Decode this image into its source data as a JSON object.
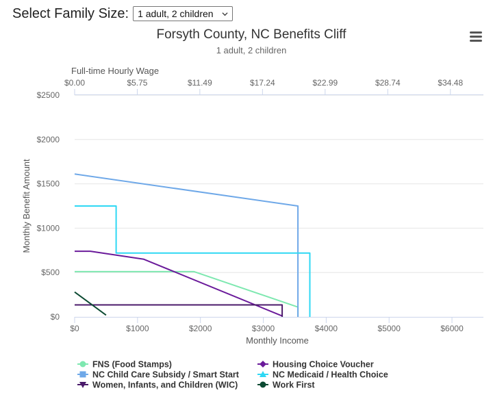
{
  "selector": {
    "label": "Select Family Size:",
    "selected": "1 adult, 2 children"
  },
  "colors": {
    "fns": "#7ee8b0",
    "housing": "#6a1a9a",
    "childcare": "#6ea8e8",
    "medicaid": "#2ed8f4",
    "wic": "#4a1a6a",
    "workfirst": "#0c4a32",
    "axis": "#ccd6eb",
    "text": "#666666"
  },
  "chart_data": {
    "type": "line",
    "title": "Forsyth County, NC Benefits Cliff",
    "subtitle": "1 adult, 2 children",
    "xlabel": "Monthly Income",
    "ylabel": "Monthly Benefit Amount",
    "top_axis_label": "Full-time Hourly Wage",
    "xlim": [
      0,
      6500
    ],
    "ylim": [
      0,
      2500
    ],
    "x_ticks": [
      0,
      1000,
      2000,
      3000,
      4000,
      5000,
      6000
    ],
    "x_tick_labels": [
      "$0",
      "$1000",
      "$2000",
      "$3000",
      "$4000",
      "$5000",
      "$6000"
    ],
    "y_ticks": [
      0,
      500,
      1000,
      1500,
      2000,
      2500
    ],
    "y_tick_labels": [
      "$0",
      "$500",
      "$1000",
      "$1500",
      "$2000",
      "$2500"
    ],
    "top_ticks": [
      0,
      996,
      1991,
      2987,
      3983,
      4979,
      5975
    ],
    "top_tick_labels": [
      "$0.00",
      "$5.75",
      "$11.49",
      "$17.24",
      "$22.99",
      "$28.74",
      "$34.48"
    ],
    "legend_position": "bottom",
    "series": [
      {
        "name": "FNS (Food Stamps)",
        "key": "fns",
        "marker": "circle",
        "points": [
          [
            0,
            510
          ],
          [
            1900,
            510
          ],
          [
            3550,
            110
          ],
          [
            3550,
            0
          ]
        ]
      },
      {
        "name": "Housing Choice Voucher",
        "key": "housing",
        "marker": "diamond",
        "points": [
          [
            0,
            740
          ],
          [
            250,
            740
          ],
          [
            1100,
            650
          ],
          [
            3300,
            10
          ]
        ]
      },
      {
        "name": "NC Child Care Subsidy / Smart Start",
        "key": "childcare",
        "marker": "square",
        "points": [
          [
            0,
            1610
          ],
          [
            3550,
            1250
          ],
          [
            3550,
            0
          ]
        ]
      },
      {
        "name": "NC Medicaid / Health Choice",
        "key": "medicaid",
        "marker": "triangle",
        "points": [
          [
            0,
            1250
          ],
          [
            660,
            1250
          ],
          [
            660,
            720
          ],
          [
            3740,
            720
          ],
          [
            3740,
            0
          ]
        ]
      },
      {
        "name": "Women, Infants, and Children (WIC)",
        "key": "wic",
        "marker": "triangle-down",
        "points": [
          [
            0,
            135
          ],
          [
            3300,
            135
          ],
          [
            3300,
            0
          ]
        ]
      },
      {
        "name": "Work First",
        "key": "workfirst",
        "marker": "circle",
        "points": [
          [
            0,
            280
          ],
          [
            500,
            20
          ]
        ]
      }
    ]
  }
}
